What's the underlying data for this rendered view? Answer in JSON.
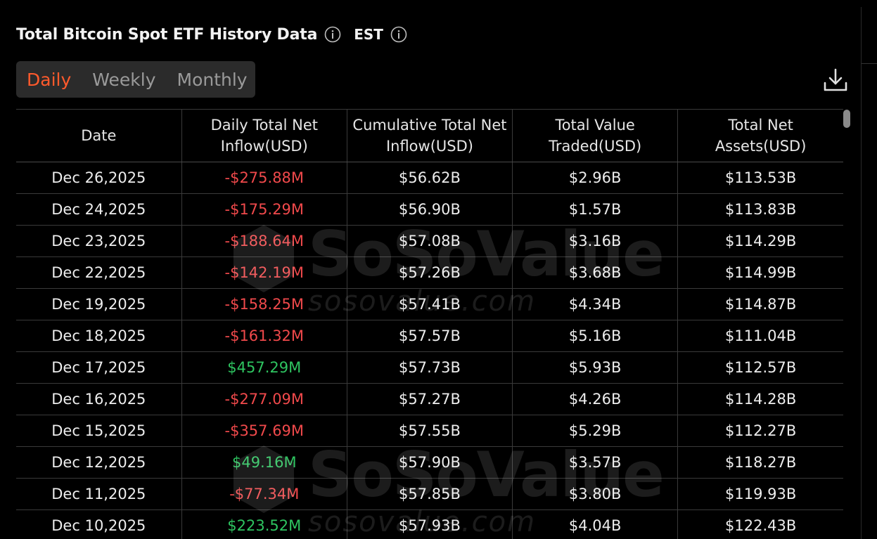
{
  "header": {
    "title": "Total Bitcoin Spot ETF History Data",
    "timezone": "EST",
    "title_info_icon": "info-circle-icon",
    "tz_info_icon": "info-circle-icon"
  },
  "tabs": [
    {
      "label": "Daily",
      "active": true
    },
    {
      "label": "Weekly",
      "active": false
    },
    {
      "label": "Monthly",
      "active": false
    }
  ],
  "download_icon": "download-icon",
  "table": {
    "columns": [
      "Date",
      "Daily Total Net Inflow(USD)",
      "Cumulative Total Net Inflow(USD)",
      "Total Value Traded(USD)",
      "Total Net Assets(USD)"
    ],
    "rows": [
      {
        "date": "Dec 26,2025",
        "inflow": "-$275.88M",
        "cumulative": "$56.62B",
        "traded": "$2.96B",
        "assets": "$113.53B"
      },
      {
        "date": "Dec 24,2025",
        "inflow": "-$175.29M",
        "cumulative": "$56.90B",
        "traded": "$1.57B",
        "assets": "$113.83B"
      },
      {
        "date": "Dec 23,2025",
        "inflow": "-$188.64M",
        "cumulative": "$57.08B",
        "traded": "$3.16B",
        "assets": "$114.29B"
      },
      {
        "date": "Dec 22,2025",
        "inflow": "-$142.19M",
        "cumulative": "$57.26B",
        "traded": "$3.68B",
        "assets": "$114.99B"
      },
      {
        "date": "Dec 19,2025",
        "inflow": "-$158.25M",
        "cumulative": "$57.41B",
        "traded": "$4.34B",
        "assets": "$114.87B"
      },
      {
        "date": "Dec 18,2025",
        "inflow": "-$161.32M",
        "cumulative": "$57.57B",
        "traded": "$5.16B",
        "assets": "$111.04B"
      },
      {
        "date": "Dec 17,2025",
        "inflow": "$457.29M",
        "cumulative": "$57.73B",
        "traded": "$5.93B",
        "assets": "$112.57B"
      },
      {
        "date": "Dec 16,2025",
        "inflow": "-$277.09M",
        "cumulative": "$57.27B",
        "traded": "$4.26B",
        "assets": "$114.28B"
      },
      {
        "date": "Dec 15,2025",
        "inflow": "-$357.69M",
        "cumulative": "$57.55B",
        "traded": "$5.29B",
        "assets": "$112.27B"
      },
      {
        "date": "Dec 12,2025",
        "inflow": "$49.16M",
        "cumulative": "$57.90B",
        "traded": "$3.57B",
        "assets": "$118.27B"
      },
      {
        "date": "Dec 11,2025",
        "inflow": "-$77.34M",
        "cumulative": "$57.85B",
        "traded": "$3.80B",
        "assets": "$119.93B"
      },
      {
        "date": "Dec 10,2025",
        "inflow": "$223.52M",
        "cumulative": "$57.93B",
        "traded": "$4.04B",
        "assets": "$122.43B"
      }
    ]
  },
  "watermark": {
    "brand": "SoSoValue",
    "url": "sosovalue.com"
  },
  "colors": {
    "background": "#000000",
    "accent": "#ff5a2c",
    "negative": "#f0494b",
    "positive": "#2ec460"
  }
}
